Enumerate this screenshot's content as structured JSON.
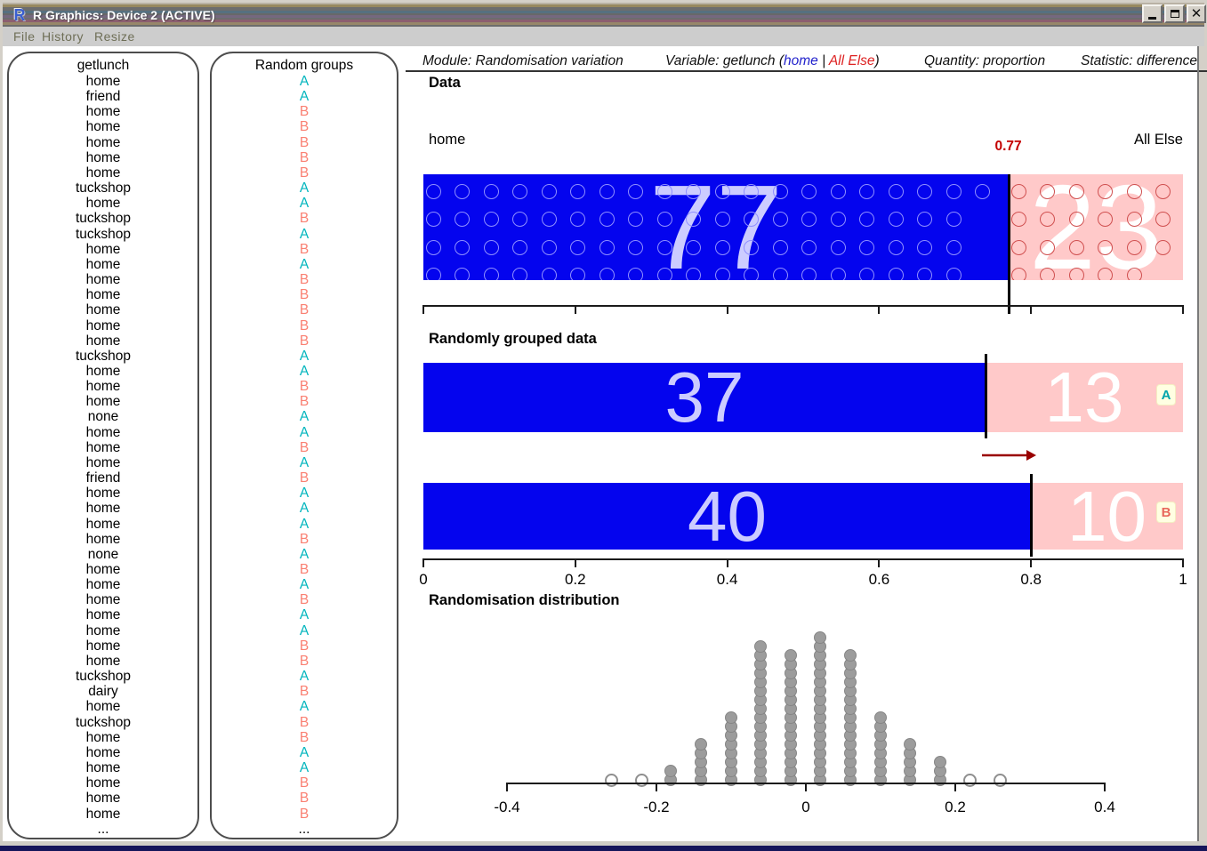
{
  "window": {
    "title": "R Graphics: Device 2 (ACTIVE)",
    "logo": "R",
    "menus": [
      "File",
      "History",
      "Resize"
    ],
    "controls": [
      "minimize",
      "maximize",
      "close"
    ]
  },
  "data_list_panel": {
    "header": "getlunch",
    "items": [
      "home",
      "friend",
      "home",
      "home",
      "home",
      "home",
      "home",
      "tuckshop",
      "home",
      "tuckshop",
      "tuckshop",
      "home",
      "home",
      "home",
      "home",
      "home",
      "home",
      "home",
      "tuckshop",
      "home",
      "home",
      "home",
      "none",
      "home",
      "home",
      "home",
      "friend",
      "home",
      "home",
      "home",
      "home",
      "none",
      "home",
      "home",
      "home",
      "home",
      "home",
      "home",
      "home",
      "tuckshop",
      "dairy",
      "home",
      "tuckshop",
      "home",
      "home",
      "home",
      "home",
      "home",
      "home"
    ],
    "ellipsis": "..."
  },
  "groups_panel": {
    "header": "Random groups",
    "letters": [
      "A",
      "A",
      "B",
      "B",
      "B",
      "B",
      "B",
      "A",
      "A",
      "B",
      "A",
      "B",
      "A",
      "B",
      "B",
      "B",
      "B",
      "B",
      "A",
      "A",
      "B",
      "B",
      "A",
      "A",
      "B",
      "A",
      "B",
      "A",
      "A",
      "A",
      "B",
      "A",
      "B",
      "A",
      "B",
      "A",
      "A",
      "B",
      "B",
      "A",
      "B",
      "A",
      "B",
      "B",
      "A",
      "A",
      "B",
      "B",
      "B"
    ],
    "ellipsis": "...",
    "colors": {
      "A": "#00b5bd",
      "B": "#fa8072"
    }
  },
  "header_info": {
    "module": "Module: Randomisation variation",
    "variable_prefix": "Variable: getlunch (",
    "variable_level1": "home",
    "variable_sep": " | ",
    "variable_level2": "All Else",
    "variable_suffix": ")",
    "quantity": "Quantity: proportion",
    "statistic": "Statistic: difference"
  },
  "data_section": {
    "title": "Data",
    "left_label": "home",
    "right_label": "All Else",
    "proportion_label": "0.77",
    "proportion": 0.77,
    "count_left": "77",
    "count_right": "23",
    "count_left_n": 77,
    "count_right_n": 23
  },
  "grouped_section": {
    "title": "Randomly grouped data",
    "groups": [
      {
        "name": "A",
        "count_left": "37",
        "count_right": "13",
        "proportion": 0.74
      },
      {
        "name": "B",
        "count_left": "40",
        "count_right": "10",
        "proportion": 0.8
      }
    ],
    "axis_ticks": [
      "0",
      "0.2",
      "0.4",
      "0.6",
      "0.8",
      "1"
    ],
    "axis_values": [
      0,
      0.2,
      0.4,
      0.6,
      0.8,
      1
    ]
  },
  "distribution_section": {
    "title": "Randomisation distribution",
    "axis_ticks": [
      "-0.4",
      "-0.2",
      "0",
      "0.2",
      "0.4"
    ],
    "axis_values": [
      -0.4,
      -0.2,
      0,
      0.2,
      0.4
    ]
  },
  "colors": {
    "bar_blue": "#0404ee",
    "bar_pink": "#ffc9c9",
    "num_on_blue": "#ccccff",
    "num_on_pink": "#ffffff",
    "proportion_red": "#c40000",
    "arrow_dark_red": "#990000",
    "dot_gray": "#9c9c9c",
    "group_a_cyan": "#00b5bd",
    "group_b_salmon": "#fa8072"
  },
  "chart_data": [
    {
      "type": "bar",
      "title": "Data",
      "description": "Stacked proportion bar of getlunch: home vs All Else, n=100",
      "categories": [
        "home",
        "All Else"
      ],
      "values": [
        77,
        23
      ],
      "proportion_marker": 0.77,
      "xlim": [
        0,
        1
      ]
    },
    {
      "type": "bar",
      "title": "Randomly grouped data",
      "description": "Stacked proportion bars for random groups A and B (50 each)",
      "series": [
        {
          "name": "A",
          "values": [
            37,
            13
          ],
          "proportion": 0.74
        },
        {
          "name": "B",
          "values": [
            40,
            10
          ],
          "proportion": 0.8
        }
      ],
      "categories": [
        "home",
        "All Else"
      ],
      "xlabel_ticks": [
        0,
        0.2,
        0.4,
        0.6,
        0.8,
        1
      ],
      "xlim": [
        0,
        1
      ]
    },
    {
      "type": "scatter",
      "title": "Randomisation distribution",
      "description": "Stacked dot plot of difference in proportions from re-randomisations",
      "x": [
        -0.26,
        -0.22,
        -0.18,
        -0.14,
        -0.1,
        -0.06,
        -0.02,
        0.02,
        0.06,
        0.1,
        0.14,
        0.18,
        0.22,
        0.26
      ],
      "counts": [
        1,
        1,
        2,
        5,
        8,
        16,
        15,
        17,
        15,
        8,
        5,
        3,
        1,
        1
      ],
      "hollow": [
        true,
        true,
        false,
        false,
        false,
        false,
        false,
        false,
        false,
        false,
        false,
        false,
        true,
        true
      ],
      "xlabel_ticks": [
        -0.4,
        -0.2,
        0,
        0.2,
        0.4
      ],
      "xlim": [
        -0.4,
        0.4
      ]
    }
  ]
}
